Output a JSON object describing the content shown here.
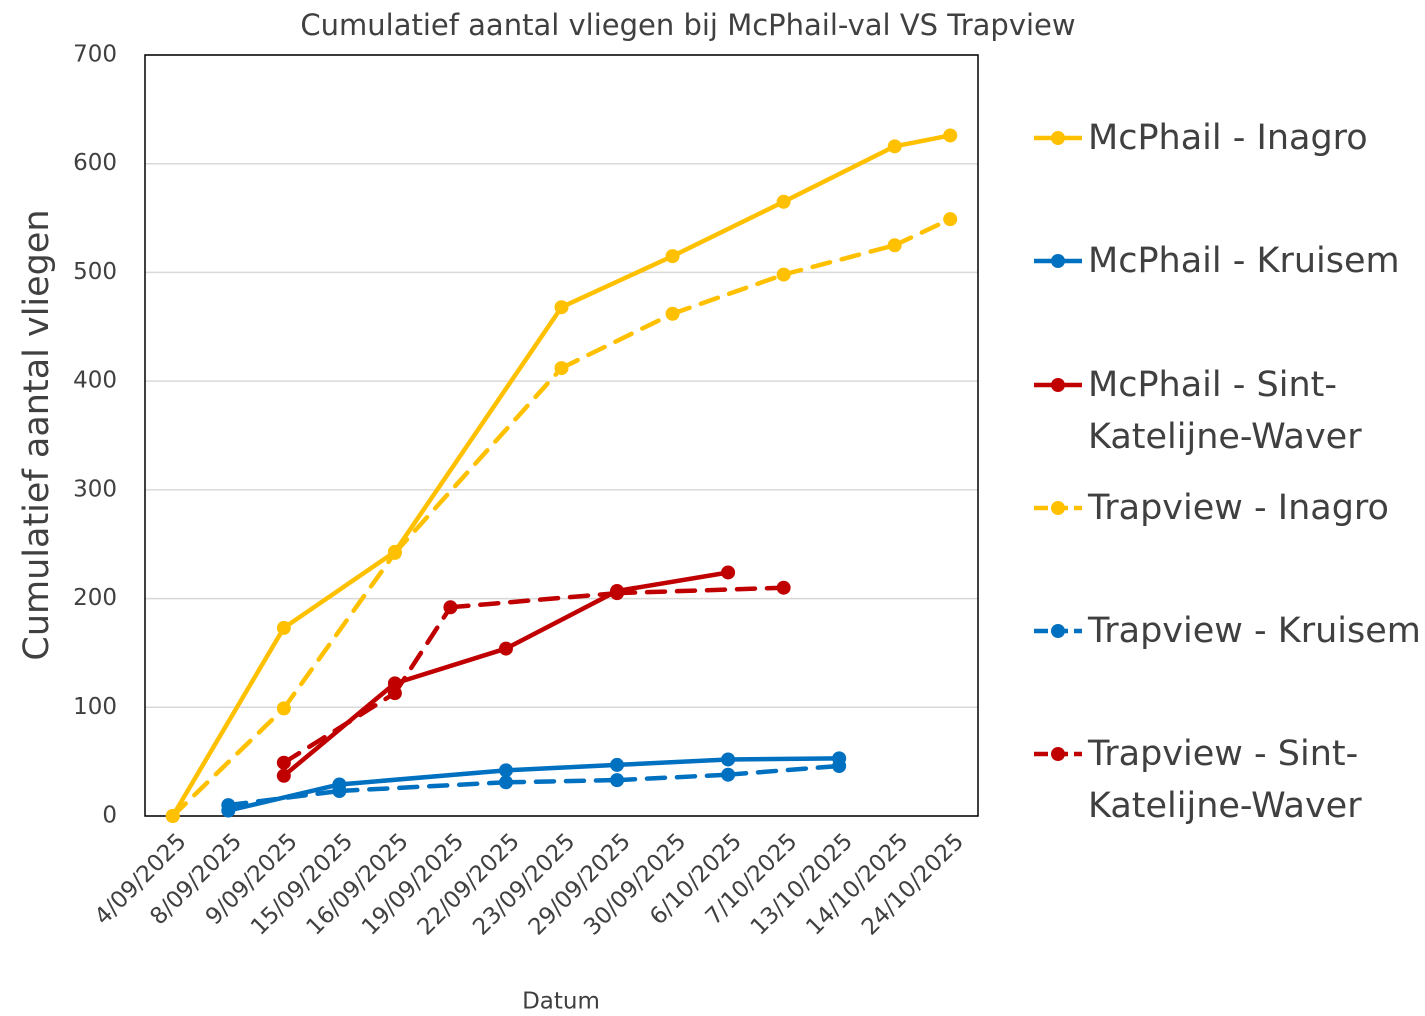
{
  "chart_data": {
    "type": "line",
    "title": "Cumulatief aantal vliegen bij McPhail-val VS Trapview",
    "x_label": "Datum",
    "y_label": "Cumulatief aantal vliegen",
    "categories": [
      "4/09/2025",
      "8/09/2025",
      "9/09/2025",
      "15/09/2025",
      "16/09/2025",
      "19/09/2025",
      "22/09/2025",
      "23/09/2025",
      "29/09/2025",
      "30/09/2025",
      "6/10/2025",
      "7/10/2025",
      "13/10/2025",
      "14/10/2025",
      "24/10/2025"
    ],
    "series": [
      {
        "name": "McPhail - Inagro",
        "color": "#ffc000",
        "dashed": false,
        "values": [
          0,
          null,
          173,
          null,
          243,
          null,
          null,
          468,
          null,
          515,
          null,
          565,
          null,
          616,
          626
        ]
      },
      {
        "name": "McPhail - Kruisem",
        "color": "#0070c0",
        "dashed": false,
        "values": [
          null,
          5,
          null,
          29,
          null,
          null,
          42,
          null,
          47,
          null,
          52,
          null,
          53,
          null,
          null
        ]
      },
      {
        "name": "McPhail - Sint-Katelijne-Waver",
        "color": "#c00000",
        "dashed": false,
        "values": [
          null,
          null,
          37,
          null,
          122,
          null,
          154,
          null,
          207,
          null,
          224,
          null,
          null,
          null,
          null
        ]
      },
      {
        "name": "Trapview - Inagro",
        "color": "#ffc000",
        "dashed": true,
        "values": [
          0,
          null,
          99,
          null,
          242,
          null,
          null,
          412,
          null,
          462,
          null,
          498,
          null,
          525,
          549
        ]
      },
      {
        "name": "Trapview - Kruisem",
        "color": "#0070c0",
        "dashed": true,
        "values": [
          null,
          10,
          null,
          23,
          null,
          null,
          31,
          null,
          33,
          null,
          38,
          null,
          46,
          null,
          null
        ]
      },
      {
        "name": "Trapview - Sint-Katelijne-Waver",
        "color": "#c00000",
        "dashed": true,
        "values": [
          null,
          null,
          49,
          null,
          113,
          192,
          null,
          null,
          205,
          null,
          null,
          210,
          null,
          null,
          null
        ]
      }
    ],
    "ylim": [
      0,
      700
    ],
    "yticks": [
      0,
      100,
      200,
      300,
      400,
      500,
      600,
      700
    ],
    "grid": true,
    "legend": "right"
  }
}
